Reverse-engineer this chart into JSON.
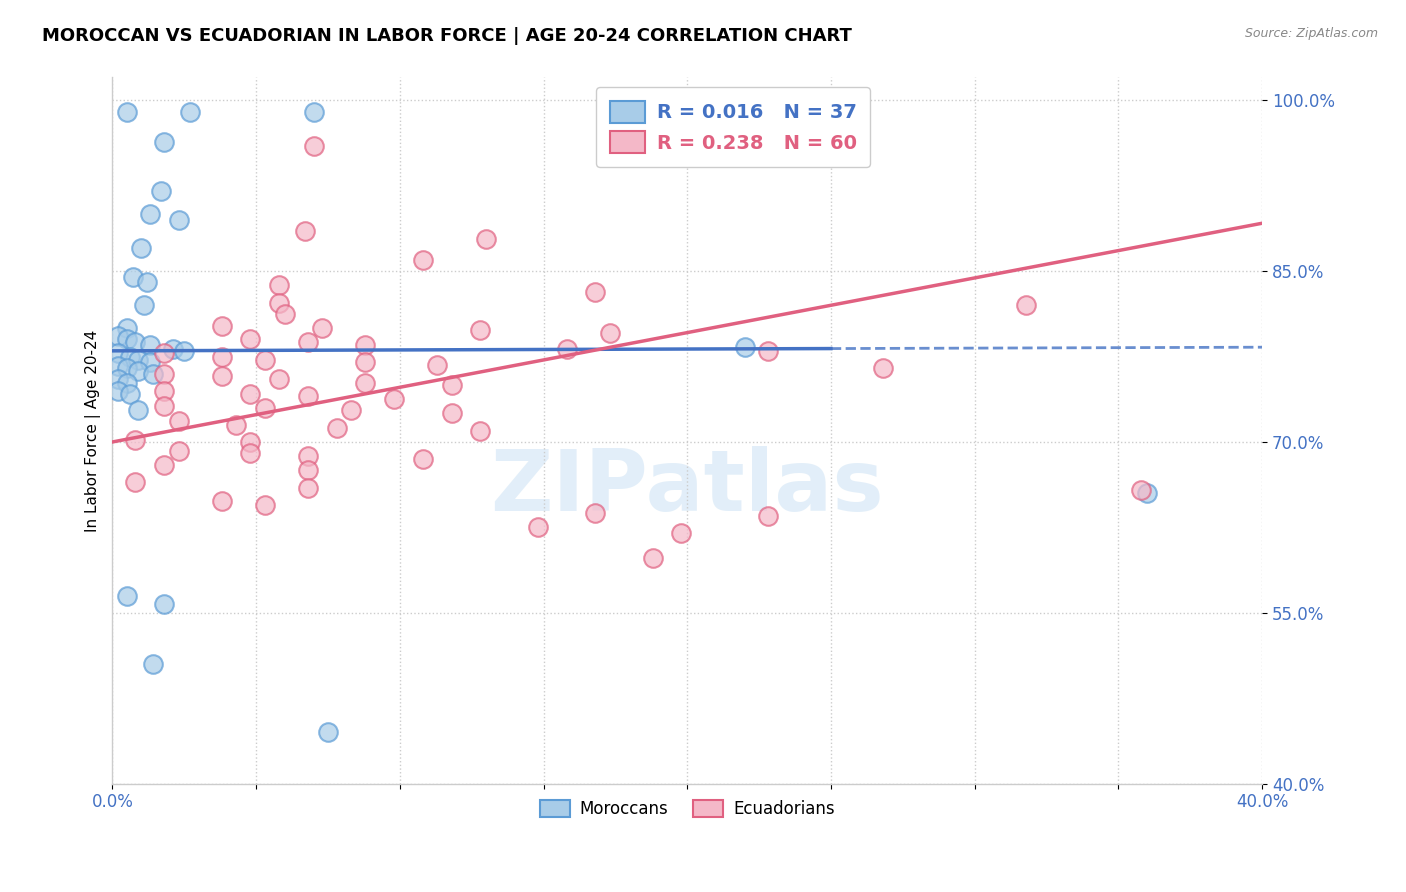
{
  "title": "MOROCCAN VS ECUADORIAN IN LABOR FORCE | AGE 20-24 CORRELATION CHART",
  "source": "Source: ZipAtlas.com",
  "ylabel": "In Labor Force | Age 20-24",
  "watermark": "ZIPatlas",
  "blue_R": 0.016,
  "blue_N": 37,
  "pink_R": 0.238,
  "pink_N": 60,
  "x_min": 0.0,
  "x_max": 0.4,
  "y_min": 0.4,
  "y_max": 1.02,
  "x_ticks": [
    0.0,
    0.05,
    0.1,
    0.15,
    0.2,
    0.25,
    0.3,
    0.35,
    0.4
  ],
  "y_ticks": [
    0.4,
    0.55,
    0.7,
    0.85,
    1.0
  ],
  "y_tick_labels": [
    "40.0%",
    "55.0%",
    "70.0%",
    "85.0%",
    "100.0%"
  ],
  "blue_scatter_color": "#a8cce8",
  "blue_edge_color": "#5b9bd5",
  "pink_scatter_color": "#f4b8c8",
  "pink_edge_color": "#e06080",
  "blue_line_color": "#4472c4",
  "pink_line_color": "#e06080",
  "blue_scatter": [
    [
      0.005,
      0.99
    ],
    [
      0.027,
      0.99
    ],
    [
      0.07,
      0.99
    ],
    [
      0.018,
      0.963
    ],
    [
      0.017,
      0.92
    ],
    [
      0.013,
      0.9
    ],
    [
      0.023,
      0.895
    ],
    [
      0.01,
      0.87
    ],
    [
      0.007,
      0.845
    ],
    [
      0.012,
      0.84
    ],
    [
      0.011,
      0.82
    ],
    [
      0.005,
      0.8
    ],
    [
      0.002,
      0.793
    ],
    [
      0.005,
      0.79
    ],
    [
      0.008,
      0.788
    ],
    [
      0.013,
      0.785
    ],
    [
      0.021,
      0.782
    ],
    [
      0.025,
      0.78
    ],
    [
      0.002,
      0.778
    ],
    [
      0.006,
      0.775
    ],
    [
      0.009,
      0.772
    ],
    [
      0.013,
      0.77
    ],
    [
      0.002,
      0.767
    ],
    [
      0.005,
      0.765
    ],
    [
      0.009,
      0.762
    ],
    [
      0.014,
      0.76
    ],
    [
      0.002,
      0.755
    ],
    [
      0.005,
      0.752
    ],
    [
      0.002,
      0.745
    ],
    [
      0.006,
      0.742
    ],
    [
      0.009,
      0.728
    ],
    [
      0.005,
      0.565
    ],
    [
      0.018,
      0.558
    ],
    [
      0.014,
      0.505
    ],
    [
      0.075,
      0.445
    ],
    [
      0.22,
      0.783
    ],
    [
      0.36,
      0.655
    ]
  ],
  "pink_scatter": [
    [
      0.24,
      0.995
    ],
    [
      0.07,
      0.96
    ],
    [
      0.067,
      0.885
    ],
    [
      0.13,
      0.878
    ],
    [
      0.108,
      0.86
    ],
    [
      0.058,
      0.838
    ],
    [
      0.168,
      0.832
    ],
    [
      0.058,
      0.822
    ],
    [
      0.318,
      0.82
    ],
    [
      0.06,
      0.812
    ],
    [
      0.038,
      0.802
    ],
    [
      0.073,
      0.8
    ],
    [
      0.128,
      0.798
    ],
    [
      0.173,
      0.796
    ],
    [
      0.048,
      0.79
    ],
    [
      0.068,
      0.788
    ],
    [
      0.088,
      0.785
    ],
    [
      0.158,
      0.782
    ],
    [
      0.228,
      0.78
    ],
    [
      0.018,
      0.778
    ],
    [
      0.038,
      0.775
    ],
    [
      0.053,
      0.772
    ],
    [
      0.088,
      0.77
    ],
    [
      0.113,
      0.768
    ],
    [
      0.268,
      0.765
    ],
    [
      0.018,
      0.76
    ],
    [
      0.038,
      0.758
    ],
    [
      0.058,
      0.755
    ],
    [
      0.088,
      0.752
    ],
    [
      0.118,
      0.75
    ],
    [
      0.018,
      0.745
    ],
    [
      0.048,
      0.742
    ],
    [
      0.068,
      0.74
    ],
    [
      0.098,
      0.738
    ],
    [
      0.018,
      0.732
    ],
    [
      0.053,
      0.73
    ],
    [
      0.083,
      0.728
    ],
    [
      0.118,
      0.725
    ],
    [
      0.023,
      0.718
    ],
    [
      0.043,
      0.715
    ],
    [
      0.078,
      0.712
    ],
    [
      0.128,
      0.71
    ],
    [
      0.008,
      0.702
    ],
    [
      0.048,
      0.7
    ],
    [
      0.023,
      0.692
    ],
    [
      0.048,
      0.69
    ],
    [
      0.068,
      0.688
    ],
    [
      0.108,
      0.685
    ],
    [
      0.018,
      0.68
    ],
    [
      0.068,
      0.675
    ],
    [
      0.008,
      0.665
    ],
    [
      0.068,
      0.66
    ],
    [
      0.038,
      0.648
    ],
    [
      0.053,
      0.645
    ],
    [
      0.168,
      0.638
    ],
    [
      0.228,
      0.635
    ],
    [
      0.148,
      0.625
    ],
    [
      0.198,
      0.62
    ],
    [
      0.188,
      0.598
    ],
    [
      0.358,
      0.658
    ]
  ],
  "blue_line_x_solid_end": 0.25,
  "blue_line_intercept": 0.78,
  "blue_line_slope": 0.008,
  "pink_line_intercept": 0.7,
  "pink_line_slope": 0.48
}
